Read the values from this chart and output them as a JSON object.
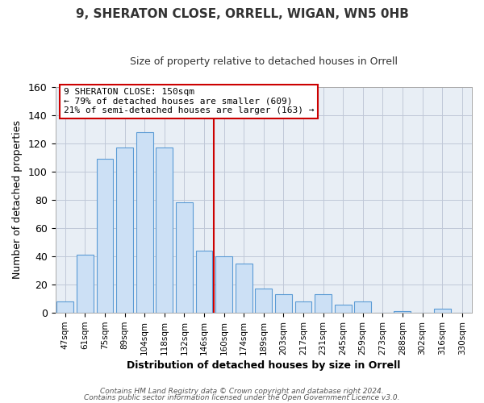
{
  "title": "9, SHERATON CLOSE, ORRELL, WIGAN, WN5 0HB",
  "subtitle": "Size of property relative to detached houses in Orrell",
  "xlabel": "Distribution of detached houses by size in Orrell",
  "ylabel": "Number of detached properties",
  "bar_labels": [
    "47sqm",
    "61sqm",
    "75sqm",
    "89sqm",
    "104sqm",
    "118sqm",
    "132sqm",
    "146sqm",
    "160sqm",
    "174sqm",
    "189sqm",
    "203sqm",
    "217sqm",
    "231sqm",
    "245sqm",
    "259sqm",
    "273sqm",
    "288sqm",
    "302sqm",
    "316sqm",
    "330sqm"
  ],
  "bar_values": [
    8,
    41,
    109,
    117,
    128,
    117,
    78,
    44,
    40,
    35,
    17,
    13,
    8,
    13,
    6,
    8,
    0,
    1,
    0,
    3,
    0
  ],
  "bar_color": "#cce0f5",
  "bar_edge_color": "#5b9bd5",
  "vline_color": "#cc0000",
  "annotation_title": "9 SHERATON CLOSE: 150sqm",
  "annotation_line1": "← 79% of detached houses are smaller (609)",
  "annotation_line2": "21% of semi-detached houses are larger (163) →",
  "annotation_box_color": "#ffffff",
  "annotation_box_edge_color": "#cc0000",
  "ylim": [
    0,
    160
  ],
  "bg_color": "#e8eef5",
  "footer1": "Contains HM Land Registry data © Crown copyright and database right 2024.",
  "footer2": "Contains public sector information licensed under the Open Government Licence v3.0."
}
